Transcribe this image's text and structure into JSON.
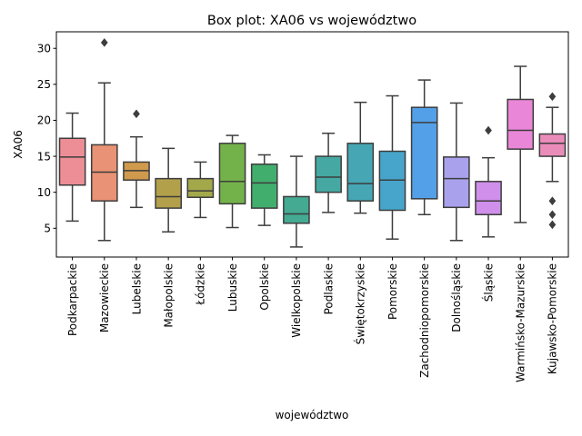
{
  "chart_data": {
    "type": "box",
    "title": "Box plot: XA06 vs województwo",
    "xlabel": "województwo",
    "ylabel": "XA06",
    "ylim": [
      1.0,
      32.3
    ],
    "yticks": [
      5,
      10,
      15,
      20,
      25,
      30
    ],
    "categories": [
      "Podkarpackie",
      "Mazowieckie",
      "Lubelskie",
      "Małopolskie",
      "Łódzkie",
      "Lubuskie",
      "Opolskie",
      "Wielkopolskie",
      "Podlaskie",
      "Świętokrzyskie",
      "Pomorskie",
      "Zachodniopomorskie",
      "Dolnośląskie",
      "Śląskie",
      "Warmińsko-Mazurskie",
      "Kujawsko-Pomorskie"
    ],
    "boxes": [
      {
        "whislo": 6.0,
        "q1": 11.0,
        "med": 14.9,
        "q3": 17.5,
        "whishi": 21.0,
        "fliers": []
      },
      {
        "whislo": 3.3,
        "q1": 8.8,
        "med": 12.8,
        "q3": 16.6,
        "whishi": 25.2,
        "fliers": [
          30.8
        ]
      },
      {
        "whislo": 7.9,
        "q1": 11.7,
        "med": 13.0,
        "q3": 14.2,
        "whishi": 17.7,
        "fliers": [
          20.9
        ]
      },
      {
        "whislo": 4.5,
        "q1": 7.8,
        "med": 9.4,
        "q3": 11.9,
        "whishi": 16.1,
        "fliers": []
      },
      {
        "whislo": 6.5,
        "q1": 9.3,
        "med": 10.2,
        "q3": 11.9,
        "whishi": 14.2,
        "fliers": []
      },
      {
        "whislo": 5.1,
        "q1": 8.4,
        "med": 11.5,
        "q3": 16.8,
        "whishi": 17.9,
        "fliers": []
      },
      {
        "whislo": 5.4,
        "q1": 7.8,
        "med": 11.3,
        "q3": 13.9,
        "whishi": 15.2,
        "fliers": []
      },
      {
        "whislo": 2.4,
        "q1": 5.7,
        "med": 7.0,
        "q3": 9.4,
        "whishi": 15.0,
        "fliers": []
      },
      {
        "whislo": 7.2,
        "q1": 10.0,
        "med": 12.1,
        "q3": 15.0,
        "whishi": 18.2,
        "fliers": []
      },
      {
        "whislo": 7.1,
        "q1": 8.8,
        "med": 11.2,
        "q3": 16.8,
        "whishi": 22.5,
        "fliers": []
      },
      {
        "whislo": 3.5,
        "q1": 7.5,
        "med": 11.7,
        "q3": 15.7,
        "whishi": 23.4,
        "fliers": []
      },
      {
        "whislo": 6.9,
        "q1": 9.1,
        "med": 19.7,
        "q3": 21.8,
        "whishi": 25.6,
        "fliers": []
      },
      {
        "whislo": 3.3,
        "q1": 7.9,
        "med": 11.9,
        "q3": 14.9,
        "whishi": 22.4,
        "fliers": []
      },
      {
        "whislo": 3.8,
        "q1": 6.9,
        "med": 8.8,
        "q3": 11.5,
        "whishi": 14.8,
        "fliers": [
          18.6
        ]
      },
      {
        "whislo": 5.8,
        "q1": 16.0,
        "med": 18.6,
        "q3": 22.9,
        "whishi": 27.5,
        "fliers": []
      },
      {
        "whislo": 11.5,
        "q1": 15.0,
        "med": 16.8,
        "q3": 18.1,
        "whishi": 21.8,
        "fliers": [
          23.3,
          8.8,
          6.9,
          5.5
        ]
      }
    ],
    "colors": [
      "#ed8e96",
      "#e99275",
      "#d09a4e",
      "#b3a04a",
      "#a3a84a",
      "#73b24a",
      "#42ae6e",
      "#44aa91",
      "#45a8a2",
      "#46a6b4",
      "#47a5cb",
      "#53a0e8",
      "#a9a1eb",
      "#cf8fea",
      "#e986d8",
      "#ea8cba"
    ],
    "grid": false,
    "legend": "none"
  }
}
